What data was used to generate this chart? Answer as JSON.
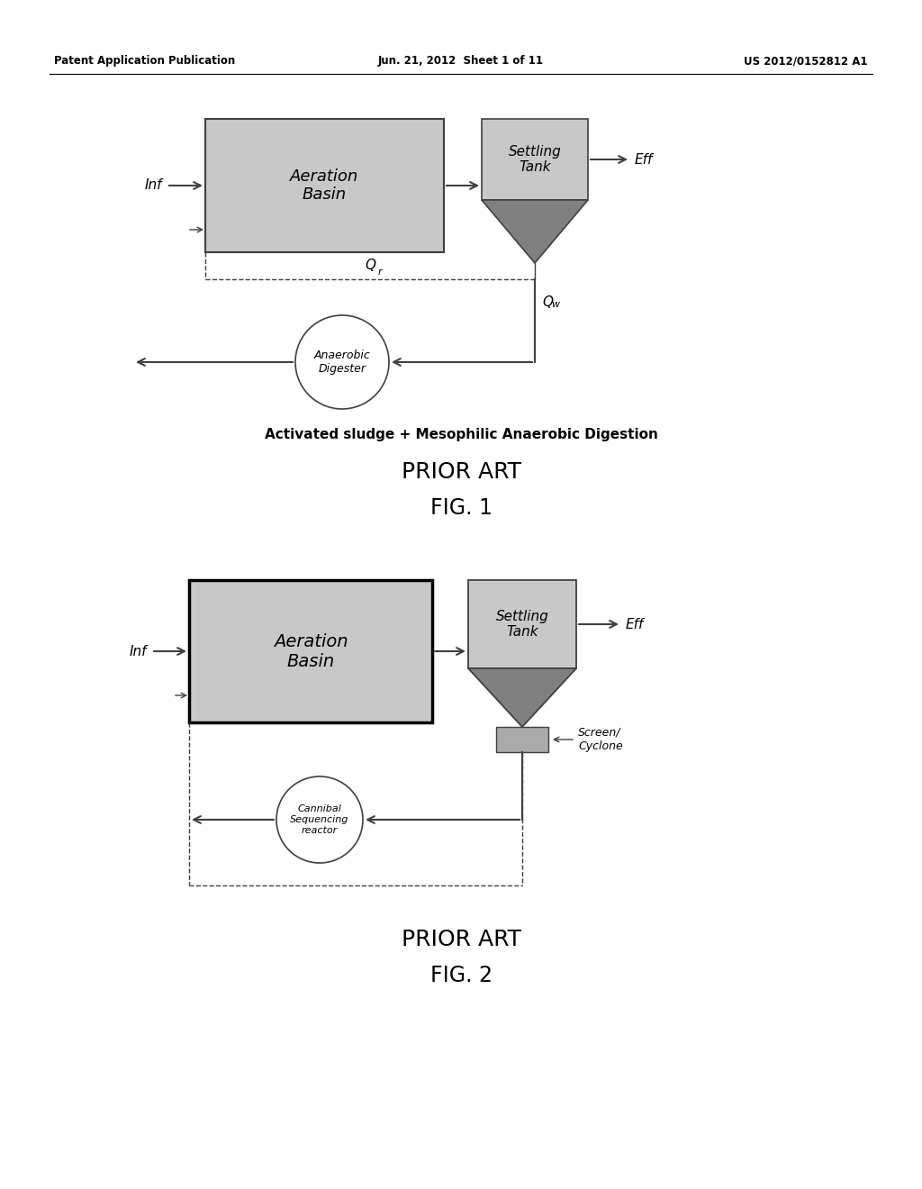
{
  "bg_color": "#ffffff",
  "header_left": "Patent Application Publication",
  "header_mid": "Jun. 21, 2012  Sheet 1 of 11",
  "header_right": "US 2012/0152812 A1",
  "fig1": {
    "title": "Activated sludge + Mesophilic Anaerobic Digestion",
    "prior_art": "PRIOR ART",
    "fig_label": "FIG. 1",
    "aeration_basin_text": [
      "Aeration",
      "Basin"
    ],
    "settling_tank_text": [
      "Settling",
      "Tank"
    ],
    "anaerobic_digester_text": [
      "Anaerobic",
      "Digester"
    ],
    "inf_label": "Inf",
    "eff_label": "Eff",
    "qr_label": "Q",
    "qr_sub": "r",
    "qw_label": "Q",
    "qw_sub": "w"
  },
  "fig2": {
    "prior_art": "PRIOR ART",
    "fig_label": "FIG. 2",
    "aeration_basin_text": [
      "Aeration",
      "Basin"
    ],
    "settling_tank_text": [
      "Settling",
      "Tank"
    ],
    "cannibal_text": [
      "Cannibal",
      "Sequencing",
      "reactor"
    ],
    "screen_cyclone_text": [
      "Screen/",
      "Cyclone"
    ],
    "inf_label": "Inf",
    "eff_label": "Eff"
  },
  "light_gray": "#c8c8c8",
  "dark_gray": "#808080",
  "medium_gray": "#aaaaaa",
  "line_color": "#404040",
  "text_color": "#000000"
}
